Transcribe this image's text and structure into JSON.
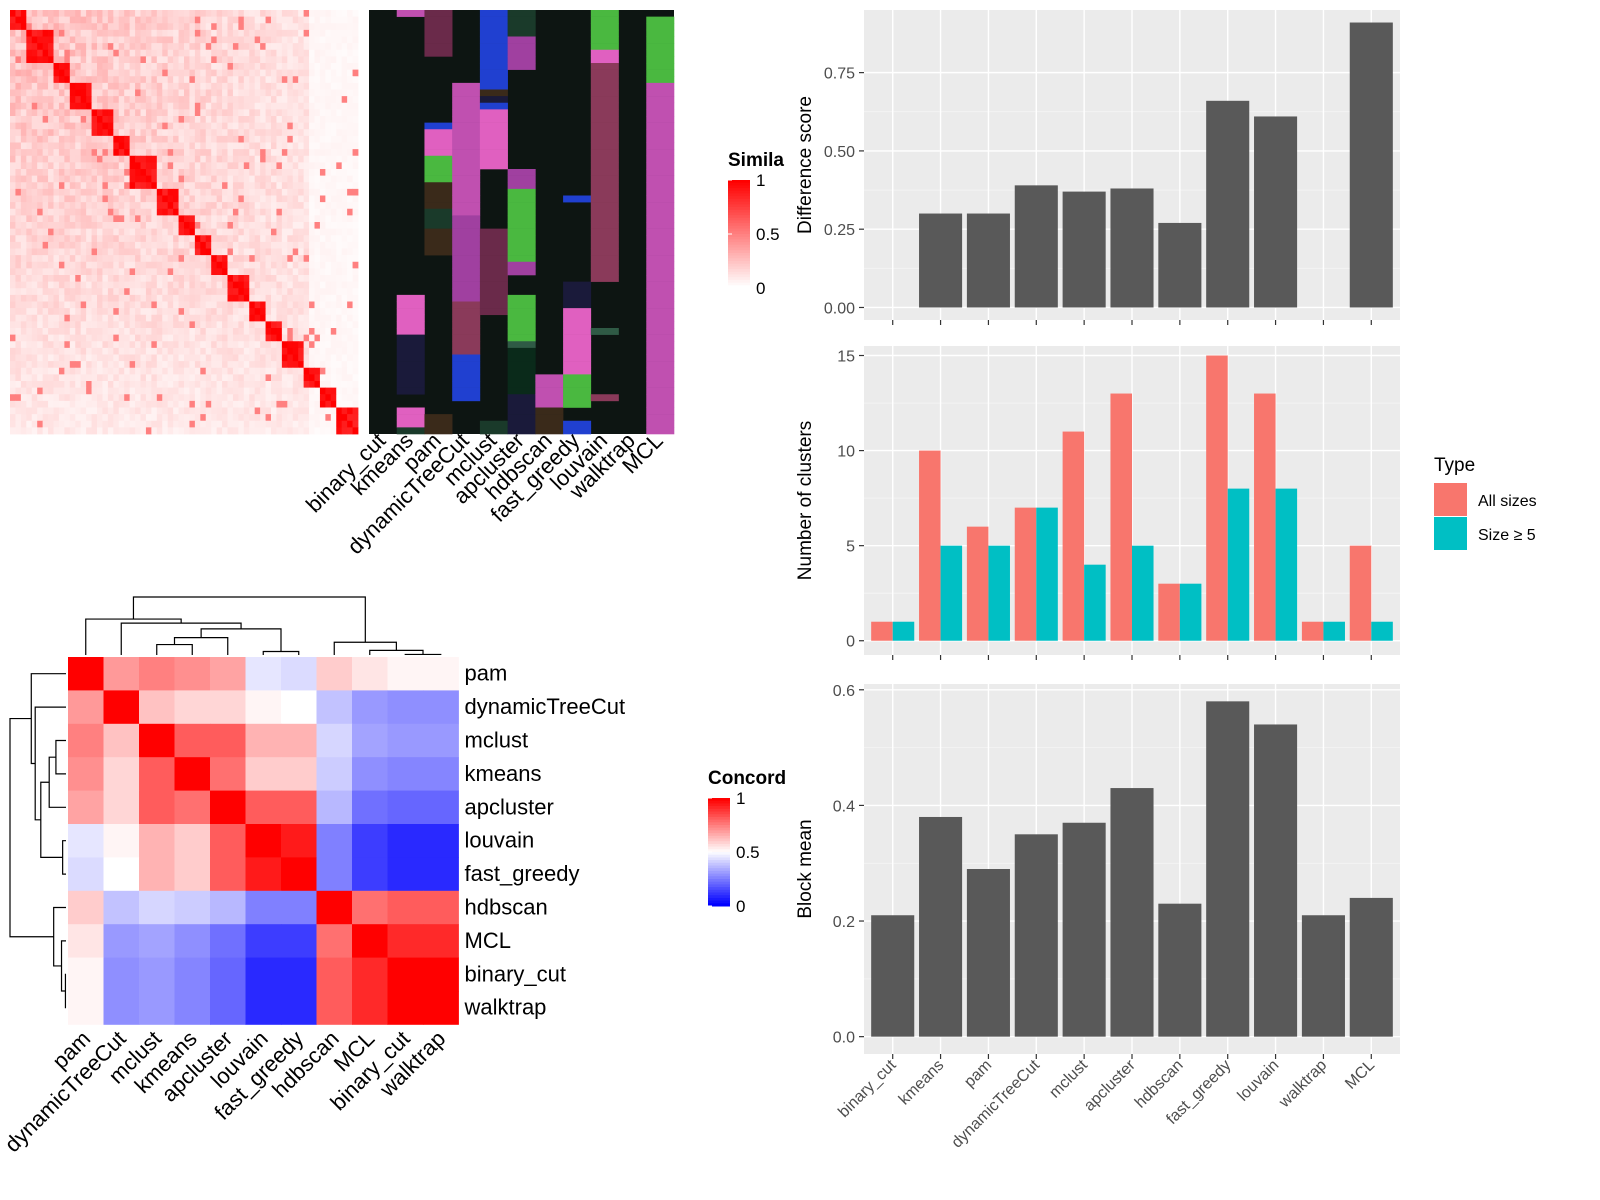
{
  "colors": {
    "panel_bg": "#ebebeb",
    "grid_major": "#ffffff",
    "bar_dark": "#595959",
    "all_sizes": "#f8766d",
    "size_ge5": "#00bfc4",
    "sim_low": "#ffffff",
    "sim_high": "#ff0000",
    "conc_low": "#0000ff",
    "conc_mid": "#ffffff",
    "conc_high": "#ff0000",
    "assign_bg": "#0d1512"
  },
  "chart_data": [
    {
      "id": "similarity_heatmap",
      "type": "heatmap",
      "description_note": "",
      "n_rows": 64,
      "legend_title": "Simila",
      "legend_ticks": [
        "1",
        "0.5",
        "0"
      ],
      "scale": [
        0,
        1
      ],
      "approx_mean_offdiagonal_early_rows": 0.25,
      "approx_mean_offdiagonal_late_rows": 0.08,
      "diagonal_value": 1
    },
    {
      "id": "cluster_assignments",
      "type": "heatmap",
      "x_labels": [
        "binary_cut",
        "kmeans",
        "pam",
        "dynamicTreeCut",
        "mclust",
        "apcluster",
        "hdbscan",
        "fast_greedy",
        "louvain",
        "walktrap",
        "MCL"
      ]
    },
    {
      "id": "difference_score",
      "type": "bar",
      "categories": [
        "binary_cut",
        "kmeans",
        "pam",
        "dynamicTreeCut",
        "mclust",
        "apcluster",
        "hdbscan",
        "fast_greedy",
        "louvain",
        "walktrap",
        "MCL"
      ],
      "values": [
        0,
        0.3,
        0.3,
        0.39,
        0.37,
        0.38,
        0.27,
        0.66,
        0.61,
        0,
        0.91
      ],
      "ylabel": "Difference score",
      "ylim": [
        -0.04,
        0.95
      ],
      "yticks": [
        "0.00",
        "0.25",
        "0.50",
        "0.75"
      ],
      "ytick_values": [
        0,
        0.25,
        0.5,
        0.75
      ],
      "grid": true
    },
    {
      "id": "number_of_clusters",
      "type": "bar",
      "categories": [
        "binary_cut",
        "kmeans",
        "pam",
        "dynamicTreeCut",
        "mclust",
        "apcluster",
        "hdbscan",
        "fast_greedy",
        "louvain",
        "walktrap",
        "MCL"
      ],
      "series": [
        {
          "name": "All sizes",
          "values": [
            1,
            10,
            6,
            7,
            11,
            13,
            3,
            15,
            13,
            1,
            5
          ]
        },
        {
          "name": "Size ≥ 5",
          "values": [
            1,
            5,
            5,
            7,
            4,
            5,
            3,
            8,
            8,
            1,
            1
          ]
        }
      ],
      "ylabel": "Number of clusters",
      "ylim": [
        -0.75,
        15.5
      ],
      "yticks": [
        "0",
        "5",
        "10",
        "15"
      ],
      "ytick_values": [
        0,
        5,
        10,
        15
      ],
      "legend_title": "Type",
      "legend_position": "right",
      "grid": true
    },
    {
      "id": "block_mean",
      "type": "bar",
      "categories": [
        "binary_cut",
        "kmeans",
        "pam",
        "dynamicTreeCut",
        "mclust",
        "apcluster",
        "hdbscan",
        "fast_greedy",
        "louvain",
        "walktrap",
        "MCL"
      ],
      "values": [
        0.21,
        0.38,
        0.29,
        0.35,
        0.37,
        0.43,
        0.23,
        0.58,
        0.54,
        0.21,
        0.24
      ],
      "ylabel": "Block mean",
      "ylim": [
        -0.03,
        0.61
      ],
      "yticks": [
        "0.0",
        "0.2",
        "0.4",
        "0.6"
      ],
      "ytick_values": [
        0,
        0.2,
        0.4,
        0.6
      ],
      "grid": true
    },
    {
      "id": "concordance_heatmap",
      "type": "heatmap",
      "labels": [
        "pam",
        "dynamicTreeCut",
        "mclust",
        "kmeans",
        "apcluster",
        "louvain",
        "fast_greedy",
        "hdbscan",
        "MCL",
        "binary_cut",
        "walktrap"
      ],
      "values": [
        [
          1.0,
          0.7,
          0.75,
          0.72,
          0.68,
          0.45,
          0.43,
          0.6,
          0.55,
          0.52,
          0.52
        ],
        [
          0.7,
          1.0,
          0.62,
          0.58,
          0.58,
          0.52,
          0.5,
          0.38,
          0.3,
          0.28,
          0.28
        ],
        [
          0.75,
          0.62,
          1.0,
          0.82,
          0.82,
          0.65,
          0.65,
          0.42,
          0.32,
          0.3,
          0.3
        ],
        [
          0.72,
          0.58,
          0.82,
          1.0,
          0.78,
          0.6,
          0.6,
          0.4,
          0.28,
          0.26,
          0.26
        ],
        [
          0.68,
          0.58,
          0.82,
          0.78,
          1.0,
          0.82,
          0.82,
          0.36,
          0.22,
          0.2,
          0.2
        ],
        [
          0.45,
          0.52,
          0.65,
          0.6,
          0.82,
          1.0,
          0.95,
          0.25,
          0.12,
          0.08,
          0.08
        ],
        [
          0.43,
          0.5,
          0.65,
          0.6,
          0.82,
          0.95,
          1.0,
          0.25,
          0.12,
          0.08,
          0.08
        ],
        [
          0.6,
          0.38,
          0.42,
          0.4,
          0.36,
          0.25,
          0.25,
          1.0,
          0.78,
          0.82,
          0.82
        ],
        [
          0.55,
          0.3,
          0.32,
          0.28,
          0.22,
          0.12,
          0.12,
          0.78,
          1.0,
          0.92,
          0.92
        ],
        [
          0.52,
          0.28,
          0.3,
          0.26,
          0.2,
          0.08,
          0.08,
          0.82,
          0.92,
          1.0,
          1.0
        ],
        [
          0.52,
          0.28,
          0.3,
          0.26,
          0.2,
          0.08,
          0.08,
          0.82,
          0.92,
          1.0,
          1.0
        ]
      ],
      "legend_title": "Concord",
      "legend_ticks": [
        "1",
        "0.5",
        "0"
      ]
    }
  ]
}
